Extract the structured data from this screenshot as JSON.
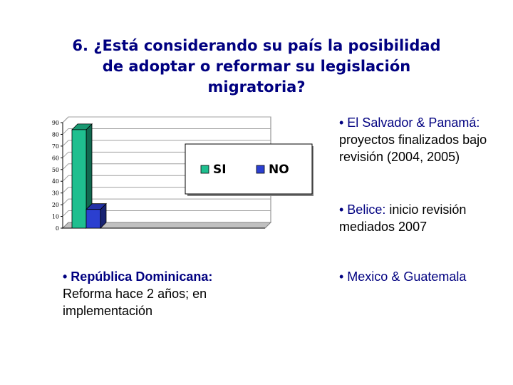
{
  "title": {
    "line1": "6.  ¿Está considerando su país la posibilidad",
    "line2": "de adoptar o reformar su legislación",
    "line3": "migratoria?"
  },
  "chart_data": {
    "type": "bar",
    "categories": [
      ""
    ],
    "series": [
      {
        "name": "SI",
        "values": [
          84
        ],
        "color": "#1fbf8f"
      },
      {
        "name": "NO",
        "values": [
          16
        ],
        "color": "#2b3fd0"
      }
    ],
    "yticks": [
      "0",
      "10",
      "20",
      "30",
      "40",
      "50",
      "60",
      "70",
      "80",
      "90"
    ],
    "ylim": [
      0,
      90
    ],
    "grid": true,
    "style": "3d",
    "legend_placement": "center-right"
  },
  "notes": {
    "left": {
      "highlight": "• República Dominicana:",
      "text": "Reforma hace 2 años; en implementación"
    },
    "right1": {
      "highlight": "• El Salvador & Panamá:",
      "text": "proyectos finalizados bajo revisión (2004, 2005)"
    },
    "right2": {
      "highlight": "• Belice:",
      "text": "inicio revisión mediados 2007"
    },
    "right3": {
      "highlight": "• Mexico & Guatemala",
      "text": ""
    }
  }
}
